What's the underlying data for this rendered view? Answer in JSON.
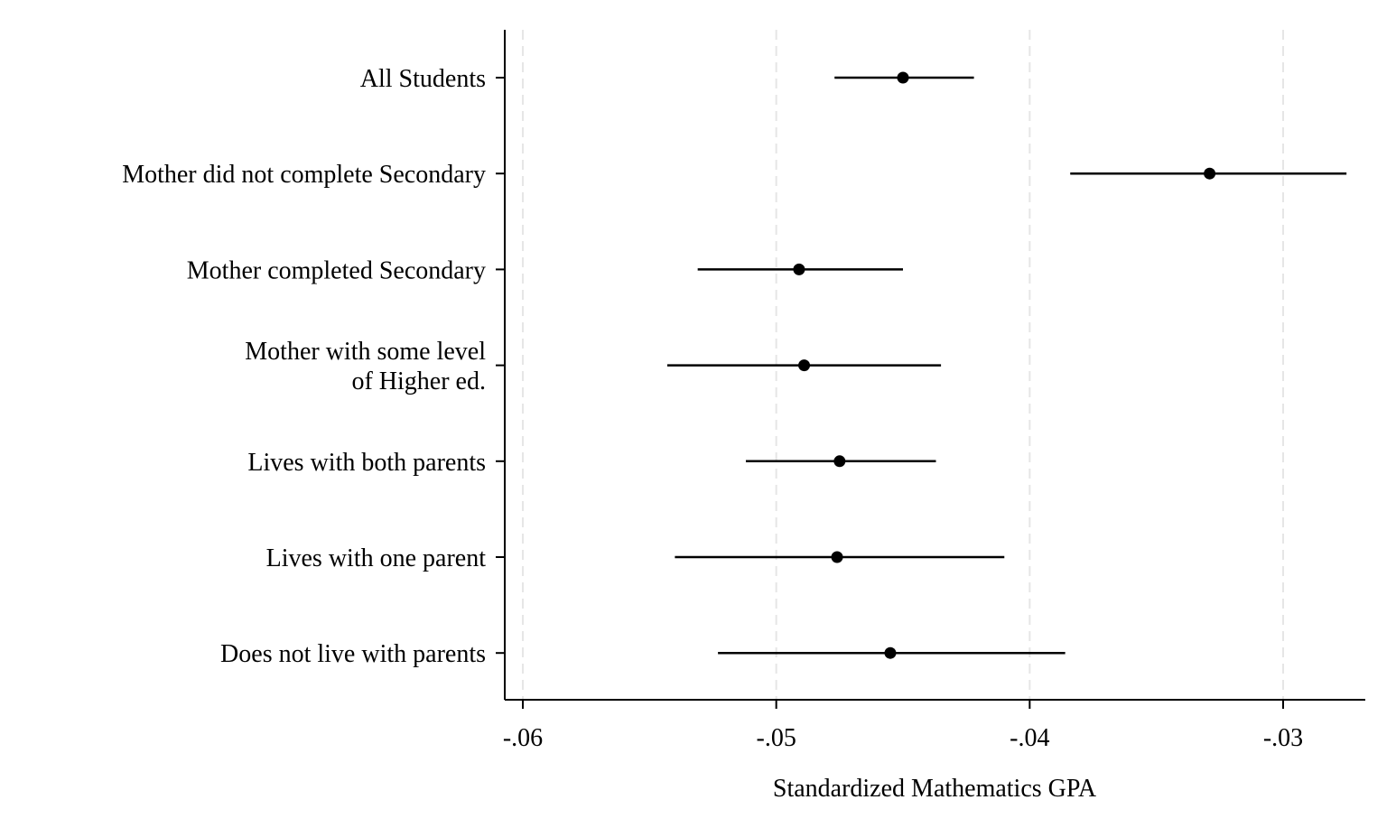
{
  "chart_data": {
    "type": "scatter",
    "subtype": "coefficient-plot-with-confidence-intervals",
    "orientation": "horizontal",
    "xlabel": "Standardized Mathematics GPA",
    "ylabel": "",
    "xlim": [
      -0.0607,
      -0.0267
    ],
    "xticks": [
      -0.06,
      -0.05,
      -0.04,
      -0.03
    ],
    "xtick_labels": [
      "-.06",
      "-.05",
      "-.04",
      "-.03"
    ],
    "grid": "vertical dashed at x ticks",
    "legend": "none",
    "colors": {
      "marker": "#000000",
      "interval": "#000000",
      "grid": "#e6e6e6",
      "axis": "#000000"
    },
    "categories": [
      [
        "All Students"
      ],
      [
        "Mother did not complete Secondary"
      ],
      [
        "Mother completed Secondary"
      ],
      [
        "Mother with some level",
        "of Higher ed."
      ],
      [
        "Lives with both parents"
      ],
      [
        "Lives with one parent"
      ],
      [
        "Does not live with parents"
      ]
    ],
    "estimates": [
      -0.045,
      -0.0329,
      -0.0491,
      -0.0489,
      -0.0475,
      -0.0476,
      -0.0455
    ],
    "ci_low": [
      -0.0477,
      -0.0384,
      -0.0531,
      -0.0543,
      -0.0512,
      -0.054,
      -0.0523
    ],
    "ci_high": [
      -0.0422,
      -0.0275,
      -0.045,
      -0.0435,
      -0.0437,
      -0.041,
      -0.0386
    ]
  }
}
